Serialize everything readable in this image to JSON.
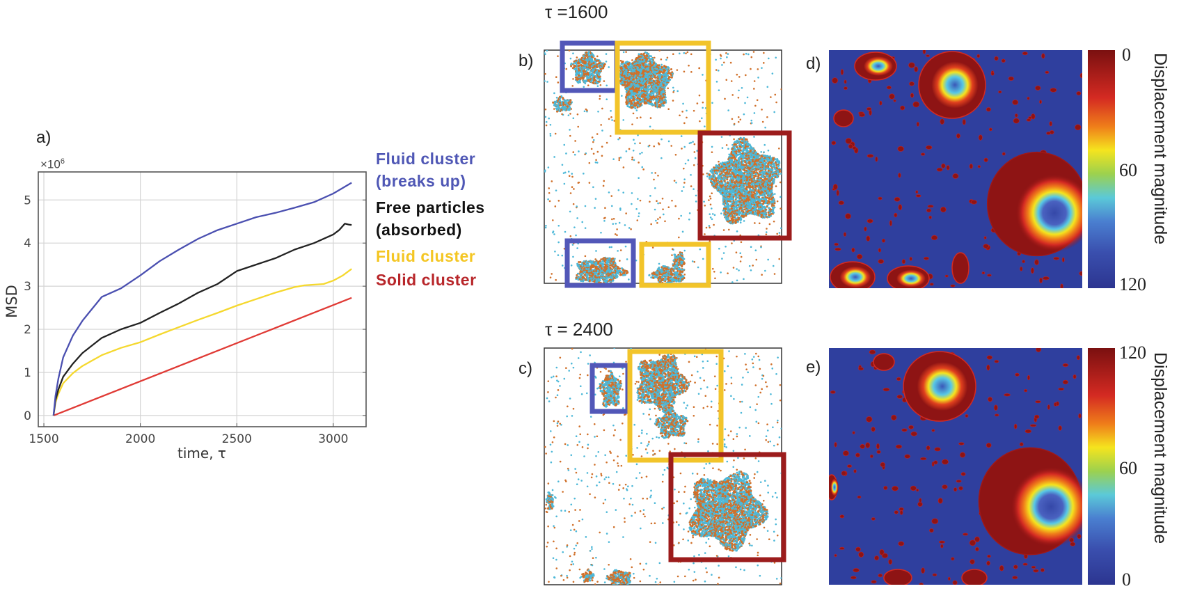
{
  "chart_data": {
    "type": "line",
    "panel_label": "a)",
    "xlabel": "time,  τ",
    "ylabel": "MSD",
    "y_multiplier": "×10",
    "y_multiplier_exp": "6",
    "xlim": [
      1471,
      3170
    ],
    "ylim": [
      -0.26,
      5.65
    ],
    "xticks": [
      1500,
      2000,
      2500,
      3000
    ],
    "yticks": [
      0,
      1,
      2,
      3,
      4,
      5
    ],
    "grid": true,
    "legend_placement": "right-outside",
    "series": [
      {
        "name": "Fluid cluster (breaks up)",
        "color": "#4a4fb0",
        "x": [
          1550,
          1560,
          1575,
          1600,
          1650,
          1700,
          1800,
          1900,
          2000,
          2100,
          2200,
          2300,
          2400,
          2500,
          2600,
          2700,
          2800,
          2900,
          3000,
          3050,
          3095
        ],
        "y": [
          0,
          0.45,
          0.85,
          1.35,
          1.85,
          2.2,
          2.75,
          2.95,
          3.25,
          3.58,
          3.85,
          4.1,
          4.3,
          4.45,
          4.6,
          4.7,
          4.82,
          4.95,
          5.15,
          5.28,
          5.4
        ]
      },
      {
        "name": "Free particles (absorbed)",
        "color": "#222222",
        "x": [
          1550,
          1560,
          1575,
          1600,
          1650,
          1700,
          1800,
          1900,
          2000,
          2100,
          2200,
          2300,
          2400,
          2500,
          2600,
          2700,
          2800,
          2900,
          3000,
          3030,
          3060,
          3080,
          3095
        ],
        "y": [
          0,
          0.35,
          0.6,
          0.9,
          1.2,
          1.45,
          1.8,
          2.0,
          2.15,
          2.38,
          2.6,
          2.85,
          3.05,
          3.35,
          3.5,
          3.65,
          3.85,
          4.0,
          4.2,
          4.3,
          4.45,
          4.43,
          4.42
        ]
      },
      {
        "name": "Fluid cluster",
        "color": "#f5d82e",
        "x": [
          1550,
          1560,
          1575,
          1600,
          1650,
          1700,
          1800,
          1900,
          2000,
          2100,
          2200,
          2300,
          2400,
          2500,
          2600,
          2700,
          2800,
          2850,
          2950,
          3000,
          3050,
          3095
        ],
        "y": [
          0,
          0.3,
          0.5,
          0.75,
          0.98,
          1.15,
          1.4,
          1.57,
          1.7,
          1.88,
          2.05,
          2.22,
          2.38,
          2.55,
          2.7,
          2.85,
          2.98,
          3.02,
          3.05,
          3.13,
          3.25,
          3.4
        ]
      },
      {
        "name": "Solid cluster",
        "color": "#e03a35",
        "x": [
          1550,
          3095
        ],
        "y": [
          0,
          2.73
        ]
      }
    ]
  },
  "legend": [
    {
      "lines": [
        "Fluid cluster",
        "(breaks up)"
      ],
      "color": "#4f57b5"
    },
    {
      "lines": [
        "Free particles",
        "(absorbed)"
      ],
      "color": "#111111"
    },
    {
      "lines": [
        "Fluid cluster"
      ],
      "color": "#f4c623"
    },
    {
      "lines": [
        "Solid cluster"
      ],
      "color": "#b8262a"
    }
  ],
  "panels": {
    "b": {
      "label": "b)",
      "title": "τ =1600"
    },
    "c": {
      "label": "c)",
      "title": "τ = 2400"
    },
    "d": {
      "label": "d)",
      "colorbar_ticks": [
        "0",
        "60",
        "120"
      ],
      "colorbar_label": "Displacement magnitude"
    },
    "e": {
      "label": "e)",
      "colorbar_ticks": [
        "120",
        "60",
        "0"
      ],
      "colorbar_label": "Displacement magnitude"
    }
  },
  "colors": {
    "particle_a": "#4db8d8",
    "particle_b": "#d0702a",
    "box_blue": "#5257b8",
    "box_yellow": "#f2c42a",
    "box_red": "#9c1c1c",
    "heatmap_background": "#2f3f9e"
  }
}
